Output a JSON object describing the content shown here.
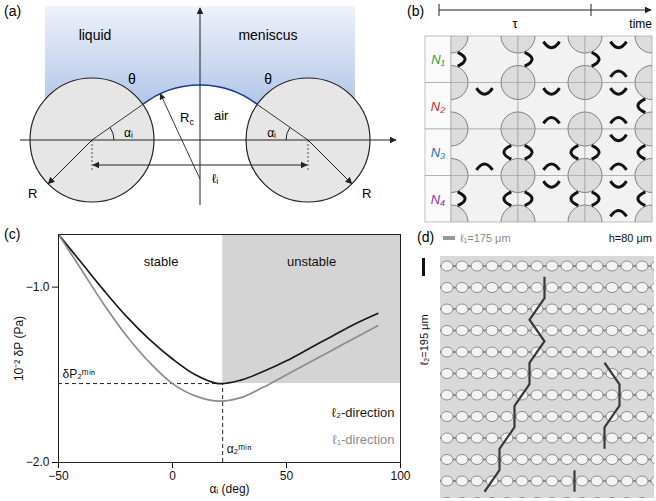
{
  "panel_a": {
    "label": "(a)",
    "liquid": "liquid",
    "meniscus": "meniscus",
    "air": "air",
    "theta": "θ",
    "Rc": {
      "base": "R",
      "sub": "c"
    },
    "alpha": "αᵢ",
    "ell": "ℓᵢ",
    "R": "R"
  },
  "panel_b": {
    "label": "(b)",
    "tau": "τ",
    "time": "time",
    "rows": [
      {
        "name": "N₁",
        "color": "#2e9e3e"
      },
      {
        "name": "N₂",
        "color": "#d62728"
      },
      {
        "name": "N₃",
        "color": "#1f6fb4"
      },
      {
        "name": "N₄",
        "color": "#8e2fa8"
      }
    ]
  },
  "chart_data": {
    "type": "line",
    "title": "(c)",
    "xlabel": "αᵢ (deg)",
    "ylabel": "10⁻² δP (Pa)",
    "x": [
      -50,
      -40,
      -30,
      -20,
      -10,
      0,
      10,
      20,
      30,
      40,
      50,
      60,
      70,
      80,
      90
    ],
    "series": [
      {
        "name": "ℓ₂-direction",
        "color": "#1a1a1a",
        "values": [
          -0.7,
          -0.86,
          -1.02,
          -1.17,
          -1.3,
          -1.41,
          -1.5,
          -1.55,
          -1.53,
          -1.48,
          -1.42,
          -1.35,
          -1.28,
          -1.21,
          -1.15
        ]
      },
      {
        "name": "ℓ₁-direction",
        "color": "#8c8c8c",
        "values": [
          -0.7,
          -0.9,
          -1.1,
          -1.28,
          -1.43,
          -1.55,
          -1.62,
          -1.65,
          -1.63,
          -1.57,
          -1.5,
          -1.43,
          -1.36,
          -1.29,
          -1.22
        ]
      }
    ],
    "xlim": [
      -50,
      100
    ],
    "ylim": [
      -2,
      -0.7
    ],
    "xticks": [
      -50,
      0,
      50,
      100
    ],
    "yticks": [
      -2,
      -1
    ],
    "legend": "bottom-right",
    "annotations": {
      "stable": "stable",
      "unstable": "unstable"
    },
    "unstable_region": {
      "x": [
        22,
        100
      ],
      "y": [
        -1.55,
        -0.7
      ],
      "color": "#d4d4d4"
    },
    "minimum": {
      "x": 22,
      "y": -1.55,
      "x_label": "α₂ᵐⁱⁿ",
      "y_label": "δP₂ᵐⁱⁿ"
    }
  },
  "panel_d": {
    "label": "(d)",
    "l1": "ℓ₁=175 μm",
    "h": "h=80 μm",
    "l2": "ℓ₂=195 μm"
  }
}
